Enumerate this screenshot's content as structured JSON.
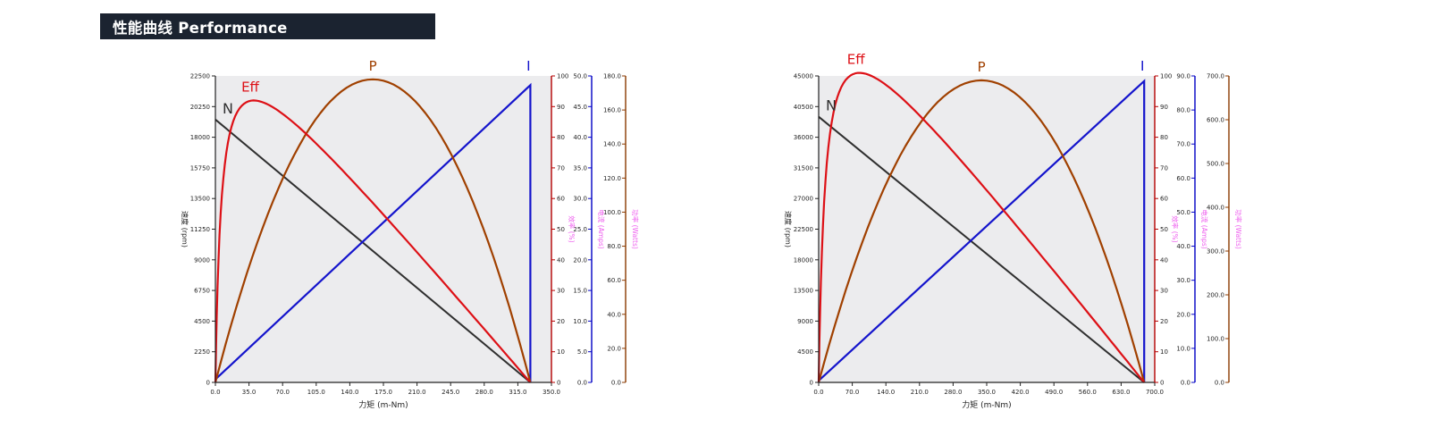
{
  "title_bar": {
    "text": "性能曲线 Performance",
    "bg": "#1b2330",
    "fg": "#ffffff"
  },
  "colors": {
    "plot_bg": "#ececee",
    "axis_black": "#222222",
    "tick_text": "#1f1f1f",
    "eff_axis": "#b40000",
    "current_axis": "#0000c4",
    "power_axis": "#8a3a00",
    "unit_label": "#ee5dee",
    "curve_speed": "#2f2f2f",
    "curve_eff": "#dd1016",
    "curve_power": "#a04000",
    "curve_current": "#1414cc"
  },
  "chart_data": [
    {
      "type": "line",
      "x_axis": {
        "label": "力矩 (m-Nm)",
        "min": 0,
        "max": 350,
        "ticks": [
          "0.0",
          "35.0",
          "70.0",
          "105.0",
          "140.0",
          "175.0",
          "210.0",
          "245.0",
          "280.0",
          "315.0",
          "350.0"
        ]
      },
      "speed_axis": {
        "label": "速度 (rpm)",
        "min": 0,
        "max": 22500,
        "ticks": [
          "22500",
          "20250",
          "18000",
          "15750",
          "13500",
          "11250",
          "9000",
          "6750",
          "4500",
          "2250",
          "0"
        ]
      },
      "eff_axis": {
        "label": "效率 (%)",
        "min": 0,
        "max": 100,
        "ticks": [
          "100",
          "90",
          "80",
          "70",
          "60",
          "50",
          "40",
          "30",
          "20",
          "10",
          "0"
        ]
      },
      "current_axis": {
        "label": "电流 (Amps)",
        "min": 0,
        "max": 50,
        "ticks": [
          "50.0",
          "45.0",
          "40.0",
          "35.0",
          "30.0",
          "25.0",
          "20.0",
          "15.0",
          "10.0",
          "5.0",
          "0.0"
        ]
      },
      "power_axis": {
        "label": "功率 (Watts)",
        "min": 0,
        "max": 180,
        "ticks": [
          "180.0",
          "160.0",
          "140.0",
          "120.0",
          "100.0",
          "80.0",
          "60.0",
          "40.0",
          "20.0",
          "0.0"
        ]
      },
      "curves": {
        "speed": {
          "label": "N",
          "no_load_rpm": 19300,
          "stall_rpm": 0
        },
        "efficiency": {
          "label": "Eff",
          "peak_pct": 92,
          "peak_torque": 40
        },
        "power": {
          "label": "P",
          "peak_watts": 178
        },
        "current": {
          "label": "I",
          "no_load_amps": 0.5,
          "stall_amps": 48.5
        }
      },
      "stall_torque": 328
    },
    {
      "type": "line",
      "x_axis": {
        "label": "力矩 (m-Nm)",
        "min": 0,
        "max": 700,
        "ticks": [
          "0.0",
          "70.0",
          "140.0",
          "210.0",
          "280.0",
          "350.0",
          "420.0",
          "490.0",
          "560.0",
          "630.0",
          "700.0"
        ]
      },
      "speed_axis": {
        "label": "速度 (rpm)",
        "min": 0,
        "max": 45000,
        "ticks": [
          "45000",
          "40500",
          "36000",
          "31500",
          "27000",
          "22500",
          "18000",
          "13500",
          "9000",
          "4500",
          "0"
        ]
      },
      "eff_axis": {
        "label": "效率 (%)",
        "min": 0,
        "max": 100,
        "ticks": [
          "100",
          "90",
          "80",
          "70",
          "60",
          "50",
          "40",
          "30",
          "20",
          "10",
          "0"
        ]
      },
      "current_axis": {
        "label": "电流 (Amps)",
        "min": 0,
        "max": 90,
        "ticks": [
          "90.0",
          "80.0",
          "70.0",
          "60.0",
          "50.0",
          "40.0",
          "30.0",
          "20.0",
          "10.0",
          "0.0"
        ]
      },
      "power_axis": {
        "label": "功率 (Watts)",
        "min": 0,
        "max": 700,
        "ticks": [
          "700.0",
          "600.0",
          "500.0",
          "400.0",
          "300.0",
          "200.0",
          "100.0",
          "0.0"
        ]
      },
      "curves": {
        "speed": {
          "label": "N",
          "no_load_rpm": 39000,
          "stall_rpm": 0
        },
        "efficiency": {
          "label": "Eff",
          "peak_pct": 101,
          "peak_torque": 85
        },
        "power": {
          "label": "P",
          "peak_watts": 690
        },
        "current": {
          "label": "I",
          "no_load_amps": 0.5,
          "stall_amps": 88.5
        }
      },
      "stall_torque": 678
    }
  ]
}
